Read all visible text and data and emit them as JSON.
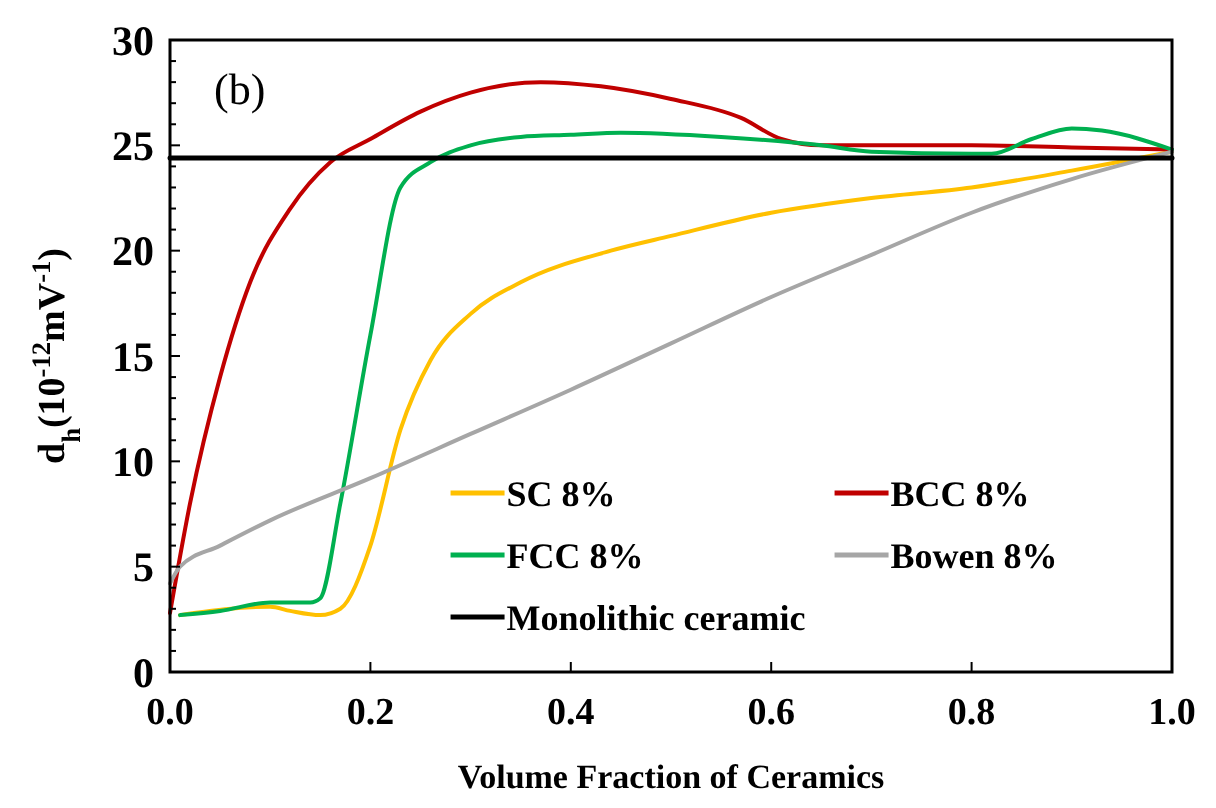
{
  "chart_data": {
    "type": "line",
    "xlabel": "Volume Fraction of Ceramics",
    "ylabel": "d$_{h}$(10$^{-12}$mV$^{-1}$)",
    "annotations": [
      "(b)"
    ],
    "xlim": [
      0,
      1
    ],
    "xticks": [
      {
        "value": 0,
        "label": "0.0"
      },
      {
        "value": 0.2,
        "label": "0.2"
      },
      {
        "value": 0.4,
        "label": "0.4"
      },
      {
        "value": 0.6,
        "label": "0.6"
      },
      {
        "value": 0.8,
        "label": "0.8"
      },
      {
        "value": 1,
        "label": "1.0"
      }
    ],
    "ylim": [
      0,
      30
    ],
    "yticks": [
      0,
      {
        "value": 1,
        "label": null
      },
      {
        "value": 2,
        "label": null
      },
      {
        "value": 3,
        "label": null
      },
      {
        "value": 4,
        "label": null
      },
      5,
      {
        "value": 6,
        "label": null
      },
      {
        "value": 7,
        "label": null
      },
      {
        "value": 8,
        "label": null
      },
      {
        "value": 9,
        "label": null
      },
      10,
      {
        "value": 11,
        "label": null
      },
      {
        "value": 12,
        "label": null
      },
      {
        "value": 13,
        "label": null
      },
      {
        "value": 14,
        "label": null
      },
      15,
      {
        "value": 16,
        "label": null
      },
      {
        "value": 17,
        "label": null
      },
      {
        "value": 18,
        "label": null
      },
      {
        "value": 19,
        "label": null
      },
      20,
      {
        "value": 21,
        "label": null
      },
      {
        "value": 22,
        "label": null
      },
      {
        "value": 23,
        "label": null
      },
      {
        "value": 24,
        "label": null
      },
      25,
      {
        "value": 26,
        "label": null
      },
      {
        "value": 27,
        "label": null
      },
      {
        "value": 28,
        "label": null
      },
      {
        "value": 29,
        "label": null
      },
      30
    ],
    "grid": false,
    "legend": "bottom right",
    "line_style": "solid",
    "marker": "none",
    "series": [
      {
        "name": "SC 8%",
        "color": "#ffc000",
        "x": [
          0.01,
          0.1,
          0.12,
          0.15,
          0.17,
          0.2,
          0.23,
          0.26,
          0.3,
          0.35,
          0.44,
          0.5,
          0.6,
          0.7,
          0.8,
          0.9,
          1.0
        ],
        "values": [
          2.7,
          3.1,
          2.9,
          2.7,
          3.0,
          6,
          11.5,
          14.8,
          17,
          18.5,
          20,
          20.7,
          21.8,
          22.5,
          23,
          23.8,
          24.7
        ]
      },
      {
        "name": "BCC 8%",
        "color": "#c00000",
        "x": [
          0,
          0.02,
          0.05,
          0.08,
          0.12,
          0.16,
          0.2,
          0.25,
          0.3,
          0.37,
          0.43,
          0.5,
          0.57,
          0.61,
          0.65,
          0.8,
          0.9,
          1.0
        ],
        "values": [
          2.8,
          8,
          14,
          18.5,
          22,
          24.2,
          25.3,
          26.6,
          27.5,
          28,
          27.8,
          27.2,
          26.3,
          25.3,
          25,
          25,
          24.9,
          24.8
        ]
      },
      {
        "name": "FCC 8%",
        "color": "#00b050",
        "x": [
          0.01,
          0.05,
          0.1,
          0.12,
          0.14,
          0.15,
          0.17,
          0.2,
          0.23,
          0.26,
          0.3,
          0.35,
          0.4,
          0.45,
          0.55,
          0.65,
          0.7,
          0.8,
          0.82,
          0.86,
          0.9,
          0.93,
          1.0
        ],
        "values": [
          2.7,
          2.9,
          3.3,
          3.3,
          3.3,
          3.5,
          8,
          16,
          23,
          24.2,
          25,
          25.4,
          25.5,
          25.6,
          25.4,
          25,
          24.7,
          24.6,
          24.6,
          25.3,
          25.8,
          25.7,
          24.8
        ]
      },
      {
        "name": "Bowen 8%",
        "color": "#a6a6a6",
        "x": [
          0,
          0.01,
          0.05,
          0.1,
          0.2,
          0.3,
          0.4,
          0.5,
          0.6,
          0.7,
          0.8,
          0.9,
          1.0
        ],
        "values": [
          4.2,
          5,
          6,
          7.2,
          9.2,
          11.3,
          13.4,
          15.6,
          17.8,
          19.8,
          21.8,
          23.4,
          24.7
        ]
      },
      {
        "name": "Monolithic ceramic",
        "color": "#000000",
        "x": [
          0,
          1
        ],
        "values": [
          24.4,
          24.4
        ]
      }
    ]
  }
}
